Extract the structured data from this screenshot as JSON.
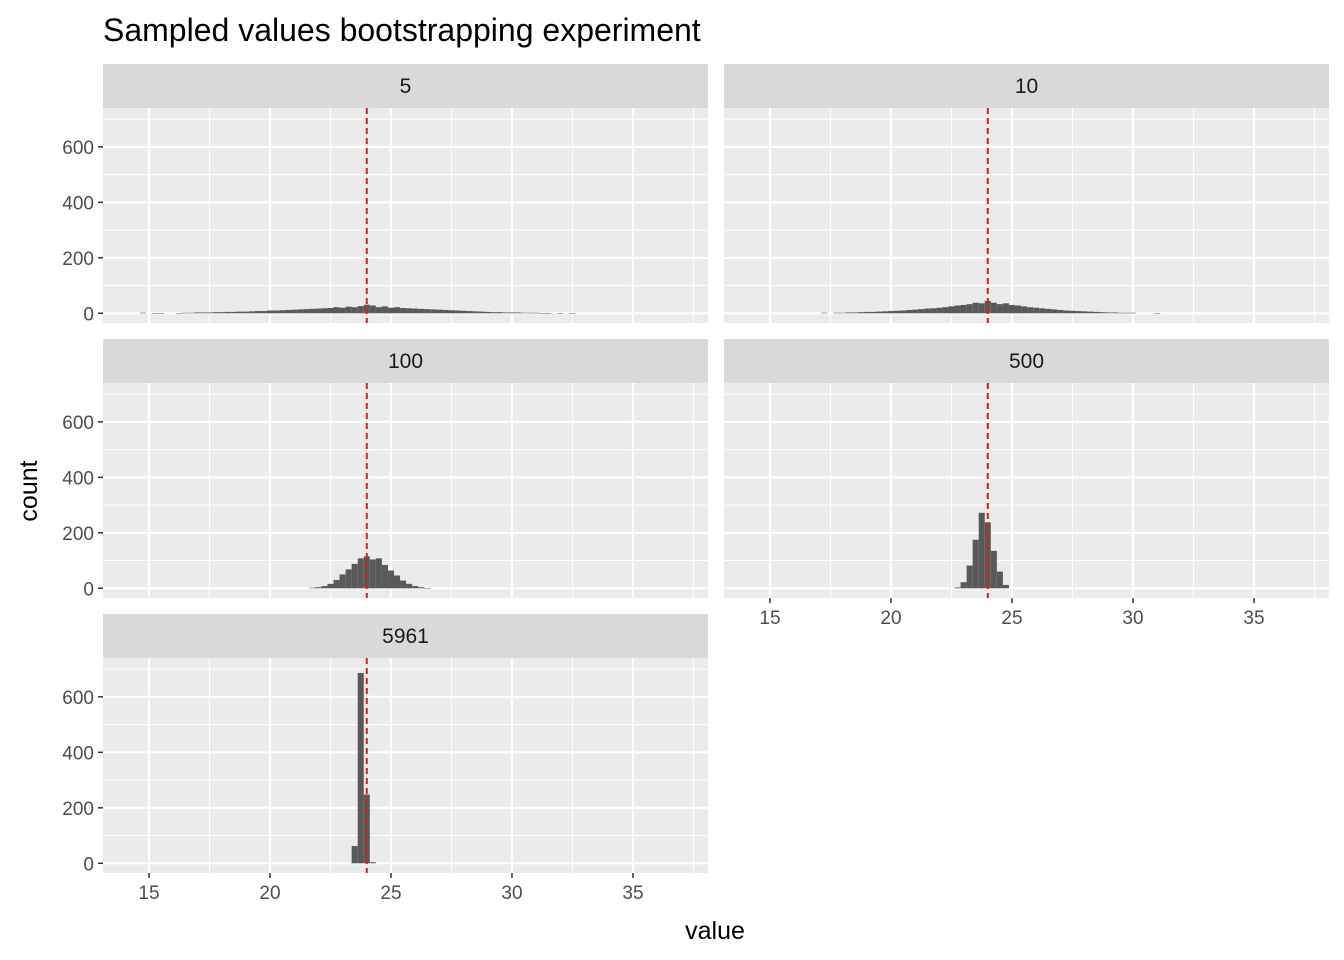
{
  "chart_data": {
    "type": "histogram",
    "title": "Sampled values bootstrapping experiment",
    "xlabel": "value",
    "ylabel": "count",
    "xlim": [
      13.1,
      38.1
    ],
    "ylim": [
      -35,
      740
    ],
    "x_ticks": [
      15,
      20,
      25,
      30,
      35
    ],
    "y_ticks": [
      0,
      200,
      400,
      600
    ],
    "grid": true,
    "bin_width": 0.25,
    "reference_line": {
      "x": 24.0,
      "style": "dashed",
      "color": "#e41a1c"
    },
    "bar_color": "#595959",
    "panel_background": "#ebebeb",
    "strip_background": "#d9d9d9",
    "facet_layout": {
      "rows": 3,
      "cols": 2
    },
    "facets": [
      {
        "label": "5",
        "bins": [
          [
            14.75,
            2
          ],
          [
            15.25,
            1
          ],
          [
            15.5,
            1
          ],
          [
            16.25,
            1
          ],
          [
            16.5,
            2
          ],
          [
            16.75,
            2
          ],
          [
            17.0,
            3
          ],
          [
            17.25,
            3
          ],
          [
            17.5,
            3
          ],
          [
            17.75,
            4
          ],
          [
            18.0,
            4
          ],
          [
            18.25,
            5
          ],
          [
            18.5,
            5
          ],
          [
            18.75,
            6
          ],
          [
            19.0,
            6
          ],
          [
            19.25,
            7
          ],
          [
            19.5,
            8
          ],
          [
            19.75,
            8
          ],
          [
            20.0,
            10
          ],
          [
            20.25,
            10
          ],
          [
            20.5,
            11
          ],
          [
            20.75,
            12
          ],
          [
            21.0,
            13
          ],
          [
            21.25,
            14
          ],
          [
            21.5,
            15
          ],
          [
            21.75,
            16
          ],
          [
            22.0,
            17
          ],
          [
            22.25,
            18
          ],
          [
            22.5,
            19
          ],
          [
            22.75,
            22
          ],
          [
            23.0,
            20
          ],
          [
            23.25,
            24
          ],
          [
            23.5,
            22
          ],
          [
            23.75,
            26
          ],
          [
            24.0,
            31
          ],
          [
            24.25,
            28
          ],
          [
            24.5,
            22
          ],
          [
            24.75,
            25
          ],
          [
            25.0,
            20
          ],
          [
            25.25,
            22
          ],
          [
            25.5,
            19
          ],
          [
            25.75,
            18
          ],
          [
            26.0,
            17
          ],
          [
            26.25,
            16
          ],
          [
            26.5,
            15
          ],
          [
            26.75,
            14
          ],
          [
            27.0,
            13
          ],
          [
            27.25,
            12
          ],
          [
            27.5,
            11
          ],
          [
            27.75,
            10
          ],
          [
            28.0,
            9
          ],
          [
            28.25,
            8
          ],
          [
            28.5,
            7
          ],
          [
            28.75,
            6
          ],
          [
            29.0,
            5
          ],
          [
            29.25,
            4
          ],
          [
            29.5,
            4
          ],
          [
            29.75,
            3
          ],
          [
            30.0,
            3
          ],
          [
            30.25,
            3
          ],
          [
            30.5,
            2
          ],
          [
            30.75,
            2
          ],
          [
            31.0,
            2
          ],
          [
            31.25,
            1
          ],
          [
            31.5,
            1
          ],
          [
            32.0,
            1
          ],
          [
            32.5,
            1
          ]
        ]
      },
      {
        "label": "10",
        "bins": [
          [
            17.25,
            2
          ],
          [
            17.75,
            2
          ],
          [
            18.0,
            2
          ],
          [
            18.25,
            3
          ],
          [
            18.5,
            3
          ],
          [
            18.75,
            4
          ],
          [
            19.0,
            5
          ],
          [
            19.25,
            5
          ],
          [
            19.5,
            6
          ],
          [
            19.75,
            7
          ],
          [
            20.0,
            8
          ],
          [
            20.25,
            9
          ],
          [
            20.5,
            10
          ],
          [
            20.75,
            12
          ],
          [
            21.0,
            13
          ],
          [
            21.25,
            15
          ],
          [
            21.5,
            17
          ],
          [
            21.75,
            18
          ],
          [
            22.0,
            20
          ],
          [
            22.25,
            22
          ],
          [
            22.5,
            25
          ],
          [
            22.75,
            28
          ],
          [
            23.0,
            30
          ],
          [
            23.25,
            33
          ],
          [
            23.5,
            38
          ],
          [
            23.75,
            36
          ],
          [
            24.0,
            45
          ],
          [
            24.25,
            38
          ],
          [
            24.5,
            33
          ],
          [
            24.75,
            36
          ],
          [
            25.0,
            30
          ],
          [
            25.25,
            28
          ],
          [
            25.5,
            25
          ],
          [
            25.75,
            22
          ],
          [
            26.0,
            20
          ],
          [
            26.25,
            18
          ],
          [
            26.5,
            16
          ],
          [
            26.75,
            14
          ],
          [
            27.0,
            12
          ],
          [
            27.25,
            10
          ],
          [
            27.5,
            9
          ],
          [
            27.75,
            8
          ],
          [
            28.0,
            7
          ],
          [
            28.25,
            6
          ],
          [
            28.5,
            5
          ],
          [
            28.75,
            4
          ],
          [
            29.0,
            3
          ],
          [
            29.25,
            3
          ],
          [
            29.5,
            2
          ],
          [
            29.75,
            2
          ],
          [
            30.0,
            2
          ],
          [
            31.0,
            1
          ]
        ]
      },
      {
        "label": "100",
        "bins": [
          [
            21.75,
            2
          ],
          [
            22.0,
            4
          ],
          [
            22.25,
            8
          ],
          [
            22.5,
            16
          ],
          [
            22.75,
            30
          ],
          [
            23.0,
            50
          ],
          [
            23.25,
            68
          ],
          [
            23.5,
            88
          ],
          [
            23.75,
            108
          ],
          [
            24.0,
            115
          ],
          [
            24.25,
            104
          ],
          [
            24.5,
            108
          ],
          [
            24.75,
            84
          ],
          [
            25.0,
            64
          ],
          [
            25.25,
            46
          ],
          [
            25.5,
            28
          ],
          [
            25.75,
            16
          ],
          [
            26.0,
            8
          ],
          [
            26.25,
            4
          ],
          [
            26.5,
            1
          ]
        ]
      },
      {
        "label": "500",
        "bins": [
          [
            22.75,
            3
          ],
          [
            23.0,
            22
          ],
          [
            23.25,
            82
          ],
          [
            23.5,
            175
          ],
          [
            23.75,
            272
          ],
          [
            24.0,
            238
          ],
          [
            24.25,
            135
          ],
          [
            24.5,
            60
          ],
          [
            24.75,
            12
          ]
        ]
      },
      {
        "label": "5961",
        "bins": [
          [
            23.5,
            62
          ],
          [
            23.75,
            686
          ],
          [
            24.0,
            248
          ],
          [
            24.25,
            4
          ]
        ]
      }
    ]
  }
}
